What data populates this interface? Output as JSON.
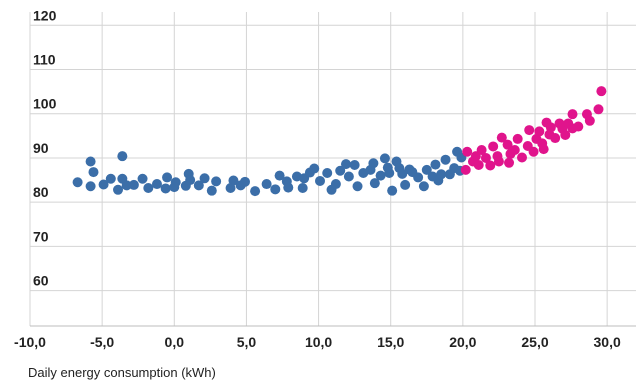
{
  "chart_data": {
    "type": "scatter",
    "title": "",
    "xlabel": "Daily energy consumption (kWh)",
    "ylabel": "",
    "xlim": [
      -10,
      32
    ],
    "ylim": [
      52,
      123
    ],
    "x_ticks": [
      -10,
      -5,
      0,
      5,
      10,
      15,
      20,
      25,
      30
    ],
    "x_tick_labels": [
      "-10,0",
      "-5,0",
      "0,0",
      "5,0",
      "10,0",
      "15,0",
      "20,0",
      "25,0",
      "30,0"
    ],
    "y_ticks": [
      60,
      70,
      80,
      90,
      100,
      110,
      120
    ],
    "y_tick_labels": [
      "60",
      "70",
      "80",
      "90",
      "100",
      "110",
      "120"
    ],
    "grid": {
      "vertical": true,
      "horizontal": true
    },
    "legend": "none",
    "series": [
      {
        "color": "#3b6ea8",
        "points": [
          [
            -6.7,
            84.5
          ],
          [
            -5.8,
            89.2
          ],
          [
            -5.6,
            86.8
          ],
          [
            -5.8,
            83.6
          ],
          [
            -4.9,
            84.0
          ],
          [
            -4.4,
            85.3
          ],
          [
            -3.9,
            82.8
          ],
          [
            -3.6,
            90.4
          ],
          [
            -3.6,
            85.3
          ],
          [
            -3.3,
            83.8
          ],
          [
            -2.8,
            83.9
          ],
          [
            -2.2,
            85.3
          ],
          [
            -1.8,
            83.2
          ],
          [
            -1.2,
            84.1
          ],
          [
            -0.6,
            83.1
          ],
          [
            -0.5,
            85.6
          ],
          [
            0.1,
            84.5
          ],
          [
            0.0,
            83.4
          ],
          [
            0.8,
            83.7
          ],
          [
            1.0,
            86.4
          ],
          [
            1.1,
            85.0
          ],
          [
            1.7,
            83.8
          ],
          [
            2.1,
            85.4
          ],
          [
            2.6,
            82.6
          ],
          [
            2.9,
            84.7
          ],
          [
            3.9,
            83.2
          ],
          [
            4.1,
            84.9
          ],
          [
            4.6,
            83.8
          ],
          [
            4.9,
            84.6
          ],
          [
            5.6,
            82.5
          ],
          [
            6.4,
            84.1
          ],
          [
            7.0,
            82.9
          ],
          [
            7.3,
            86.0
          ],
          [
            7.8,
            84.7
          ],
          [
            7.9,
            83.3
          ],
          [
            8.5,
            85.8
          ],
          [
            8.9,
            83.2
          ],
          [
            9.0,
            85.4
          ],
          [
            9.4,
            86.7
          ],
          [
            9.7,
            87.6
          ],
          [
            10.1,
            84.8
          ],
          [
            10.6,
            86.6
          ],
          [
            10.9,
            82.8
          ],
          [
            11.2,
            84.1
          ],
          [
            11.5,
            87.1
          ],
          [
            11.9,
            88.6
          ],
          [
            12.1,
            85.8
          ],
          [
            12.5,
            88.4
          ],
          [
            12.7,
            83.6
          ],
          [
            13.1,
            86.6
          ],
          [
            13.6,
            87.3
          ],
          [
            13.8,
            88.8
          ],
          [
            13.9,
            84.3
          ],
          [
            14.3,
            86.0
          ],
          [
            14.6,
            89.9
          ],
          [
            14.8,
            87.8
          ],
          [
            14.9,
            86.6
          ],
          [
            15.1,
            82.6
          ],
          [
            15.4,
            89.2
          ],
          [
            15.6,
            87.7
          ],
          [
            15.8,
            86.4
          ],
          [
            16.0,
            83.9
          ],
          [
            16.3,
            87.4
          ],
          [
            16.5,
            86.8
          ],
          [
            16.9,
            85.6
          ],
          [
            17.3,
            83.6
          ],
          [
            17.5,
            87.3
          ],
          [
            17.9,
            85.8
          ],
          [
            18.1,
            88.5
          ],
          [
            18.3,
            84.9
          ],
          [
            18.5,
            86.3
          ],
          [
            18.8,
            89.6
          ],
          [
            19.1,
            86.3
          ],
          [
            19.4,
            87.7
          ],
          [
            19.6,
            91.4
          ],
          [
            19.8,
            87.1
          ],
          [
            19.9,
            90.1
          ]
        ]
      },
      {
        "color": "#e0148c",
        "points": [
          [
            20.2,
            87.3
          ],
          [
            20.3,
            91.4
          ],
          [
            20.7,
            89.2
          ],
          [
            20.9,
            90.4
          ],
          [
            21.1,
            88.4
          ],
          [
            21.3,
            91.8
          ],
          [
            21.6,
            90.0
          ],
          [
            21.9,
            88.3
          ],
          [
            22.1,
            92.6
          ],
          [
            22.4,
            90.4
          ],
          [
            22.5,
            89.2
          ],
          [
            22.7,
            94.6
          ],
          [
            23.1,
            93.0
          ],
          [
            23.2,
            88.9
          ],
          [
            23.3,
            90.9
          ],
          [
            23.6,
            91.8
          ],
          [
            23.8,
            94.3
          ],
          [
            24.1,
            90.1
          ],
          [
            24.5,
            92.7
          ],
          [
            24.6,
            96.3
          ],
          [
            24.9,
            91.4
          ],
          [
            25.1,
            94.3
          ],
          [
            25.3,
            96.0
          ],
          [
            25.6,
            92.0
          ],
          [
            25.8,
            98.0
          ],
          [
            26.0,
            95.3
          ],
          [
            26.1,
            96.9
          ],
          [
            26.4,
            94.5
          ],
          [
            26.7,
            97.8
          ],
          [
            26.9,
            96.6
          ],
          [
            27.1,
            95.2
          ],
          [
            27.6,
            99.9
          ],
          [
            27.6,
            96.7
          ],
          [
            28.0,
            97.1
          ],
          [
            28.6,
            99.9
          ],
          [
            28.8,
            98.4
          ],
          [
            29.4,
            101.0
          ],
          [
            29.6,
            105.1
          ],
          [
            27.3,
            97.8
          ],
          [
            25.5,
            93.3
          ]
        ]
      }
    ]
  }
}
